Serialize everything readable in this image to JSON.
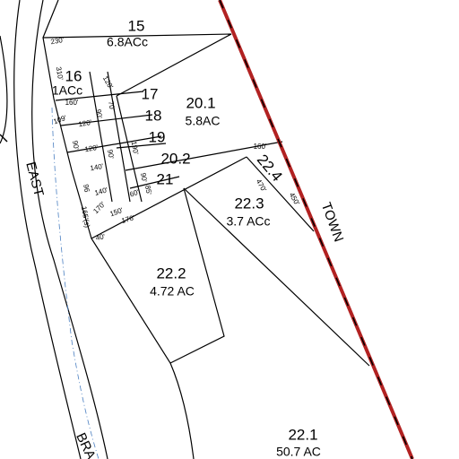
{
  "parcels": [
    {
      "id": "15",
      "area": "6.8ACc"
    },
    {
      "id": "16",
      "area": "1ACc"
    },
    {
      "id": "17"
    },
    {
      "id": "18"
    },
    {
      "id": "19"
    },
    {
      "id": "20.1",
      "area": "5.8AC"
    },
    {
      "id": "20.2"
    },
    {
      "id": "21"
    },
    {
      "id": "22.2",
      "area": "4.72 AC"
    },
    {
      "id": "22.3",
      "area": "3.7 ACc"
    },
    {
      "id": "22.4"
    },
    {
      "id": "22.1",
      "area": "50.7 AC"
    }
  ],
  "roads": [
    "EAST",
    "BRA",
    "TOWN"
  ],
  "dimensions": [
    "230'",
    "310'",
    "120'",
    "160'",
    "109'",
    "120'",
    "90'",
    "90'",
    "120'",
    "90'",
    "140'",
    "96",
    "140'",
    "165'(s)",
    "170'",
    "150'",
    "40'",
    "176'",
    "60'",
    "85'",
    "90'",
    "160'",
    "470'",
    "450'",
    "190'",
    "70'"
  ]
}
